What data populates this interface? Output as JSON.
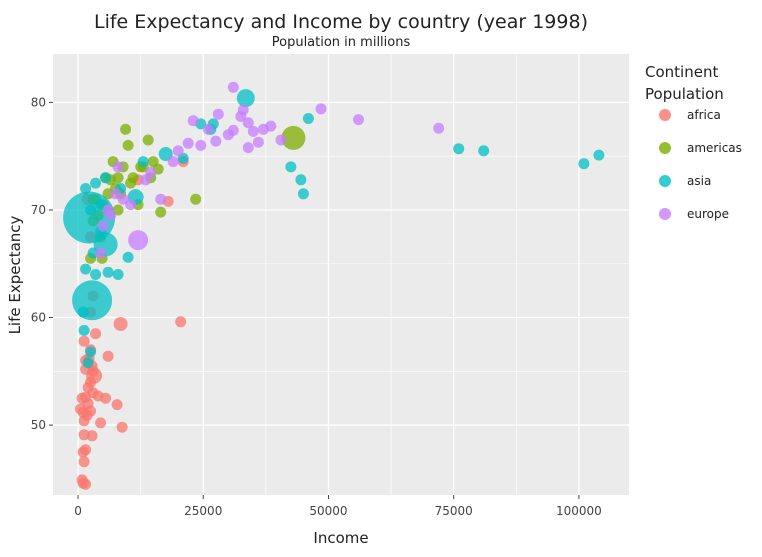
{
  "chart_data": {
    "type": "scatter",
    "title": "Life Expectancy and Income by country (year 1998)",
    "subtitle": "Population in millions",
    "xlabel": "Income",
    "ylabel": "Life Expectancy",
    "xlim": [
      -5000,
      110000
    ],
    "ylim": [
      43.5,
      84.5
    ],
    "x_ticks": [
      0,
      25000,
      50000,
      75000,
      100000
    ],
    "x_tick_labels": [
      "0",
      "25000",
      "50000",
      "75000",
      "100000"
    ],
    "y_ticks": [
      50,
      60,
      70,
      80
    ],
    "y_tick_labels": [
      "50",
      "60",
      "70",
      "80"
    ],
    "grid": true,
    "legend": {
      "title_lines": [
        "Continent",
        "Population"
      ],
      "placement": "right",
      "entries": [
        "africa",
        "americas",
        "asia",
        "europe"
      ]
    },
    "colors": {
      "africa": "#F8766D",
      "americas": "#7CAE00",
      "asia": "#00BFC4",
      "europe": "#C77CFF",
      "panel_background": "#EBEBEB",
      "grid": "#FFFFFF"
    },
    "series": [
      {
        "name": "africa",
        "points": [
          [
            1000,
            44.6
          ],
          [
            1500,
            44.5
          ],
          [
            800,
            44.9
          ],
          [
            1200,
            46.6
          ],
          [
            1000,
            47.5
          ],
          [
            1500,
            47.7
          ],
          [
            2800,
            49.0
          ],
          [
            1200,
            49.1
          ],
          [
            8800,
            49.8
          ],
          [
            4500,
            50.2
          ],
          [
            1200,
            50.4
          ],
          [
            1800,
            50.9
          ],
          [
            500,
            51.5
          ],
          [
            1000,
            51.2
          ],
          [
            2500,
            51.3
          ],
          [
            7800,
            51.9
          ],
          [
            2000,
            52.0
          ],
          [
            800,
            52.5
          ],
          [
            1500,
            52.6
          ],
          [
            4000,
            52.7
          ],
          [
            5500,
            52.5
          ],
          [
            3000,
            53.0
          ],
          [
            2000,
            53.5
          ],
          [
            2500,
            54.0
          ],
          [
            3200,
            54.6
          ],
          [
            3000,
            55.0
          ],
          [
            1500,
            55.2
          ],
          [
            2800,
            55.5
          ],
          [
            1500,
            56.0
          ],
          [
            2200,
            56.2
          ],
          [
            6000,
            56.4
          ],
          [
            2500,
            57.0
          ],
          [
            1200,
            57.8
          ],
          [
            3500,
            58.5
          ],
          [
            8500,
            59.4
          ],
          [
            20500,
            59.6
          ],
          [
            2500,
            60.5
          ],
          [
            3000,
            62.0
          ],
          [
            18000,
            70.8
          ],
          [
            21000,
            74.5
          ],
          [
            6000,
            70.0
          ],
          [
            12000,
            72.8
          ],
          [
            2500,
            67.5
          ],
          [
            1800,
            71.0
          ]
        ]
      },
      {
        "name": "americas",
        "points": [
          [
            2500,
            65.5
          ],
          [
            4500,
            67.5
          ],
          [
            3000,
            69.0
          ],
          [
            5000,
            70.5
          ],
          [
            6000,
            71.5
          ],
          [
            7500,
            72.0
          ],
          [
            8000,
            73.0
          ],
          [
            9000,
            74.0
          ],
          [
            10000,
            76.0
          ],
          [
            11000,
            73.0
          ],
          [
            12000,
            70.5
          ],
          [
            13000,
            74.0
          ],
          [
            14000,
            76.5
          ],
          [
            15000,
            74.5
          ],
          [
            16000,
            73.8
          ],
          [
            7000,
            74.5
          ],
          [
            8500,
            71.5
          ],
          [
            9500,
            77.5
          ],
          [
            10500,
            72.5
          ],
          [
            5500,
            73.0
          ],
          [
            3500,
            71.0
          ],
          [
            4000,
            69.5
          ],
          [
            6500,
            72.8
          ],
          [
            8000,
            70.0
          ],
          [
            12500,
            74.0
          ],
          [
            14500,
            73.0
          ],
          [
            16500,
            69.8
          ],
          [
            23500,
            71.0
          ],
          [
            43000,
            76.7
          ],
          [
            4800,
            65.5
          ],
          [
            3000,
            71.0
          ]
        ]
      },
      {
        "name": "asia",
        "points": [
          [
            2200,
            69.3
          ],
          [
            2800,
            61.6
          ],
          [
            5500,
            66.8
          ],
          [
            3500,
            64.0
          ],
          [
            1500,
            64.5
          ],
          [
            1000,
            60.5
          ],
          [
            1200,
            58.8
          ],
          [
            2500,
            56.8
          ],
          [
            2000,
            55.8
          ],
          [
            4500,
            68.0
          ],
          [
            8000,
            64.0
          ],
          [
            10000,
            65.6
          ],
          [
            11500,
            71.2
          ],
          [
            17500,
            75.2
          ],
          [
            21000,
            74.8
          ],
          [
            24500,
            78.0
          ],
          [
            33500,
            80.4
          ],
          [
            42500,
            74.0
          ],
          [
            44500,
            72.8
          ],
          [
            45000,
            71.5
          ],
          [
            46000,
            78.5
          ],
          [
            76000,
            75.7
          ],
          [
            81000,
            75.5
          ],
          [
            101000,
            74.3
          ],
          [
            104000,
            75.1
          ],
          [
            26500,
            77.5
          ],
          [
            3500,
            72.5
          ],
          [
            5500,
            73.0
          ],
          [
            1500,
            72.0
          ],
          [
            2500,
            70.0
          ],
          [
            4500,
            70.5
          ],
          [
            3000,
            66.0
          ],
          [
            6000,
            64.2
          ],
          [
            8500,
            72.0
          ],
          [
            13000,
            74.5
          ],
          [
            27000,
            78.0
          ]
        ]
      },
      {
        "name": "europe",
        "points": [
          [
            5000,
            68.5
          ],
          [
            6000,
            70.0
          ],
          [
            7500,
            71.5
          ],
          [
            9000,
            71.0
          ],
          [
            10500,
            70.5
          ],
          [
            12000,
            67.2
          ],
          [
            13500,
            72.8
          ],
          [
            14500,
            73.5
          ],
          [
            16500,
            71.0
          ],
          [
            19000,
            74.5
          ],
          [
            20000,
            75.5
          ],
          [
            22000,
            76.2
          ],
          [
            23000,
            78.3
          ],
          [
            24500,
            76.0
          ],
          [
            26000,
            77.5
          ],
          [
            28000,
            78.9
          ],
          [
            30000,
            77.0
          ],
          [
            31000,
            77.4
          ],
          [
            32500,
            78.7
          ],
          [
            33000,
            79.3
          ],
          [
            34000,
            78.1
          ],
          [
            35000,
            77.3
          ],
          [
            36000,
            76.3
          ],
          [
            37000,
            77.5
          ],
          [
            38500,
            77.8
          ],
          [
            40500,
            76.5
          ],
          [
            48500,
            79.4
          ],
          [
            56000,
            78.4
          ],
          [
            72000,
            77.6
          ],
          [
            31000,
            81.4
          ],
          [
            27500,
            76.4
          ],
          [
            34000,
            75.8
          ],
          [
            4500,
            66.0
          ],
          [
            6500,
            69.5
          ],
          [
            8000,
            74.0
          ]
        ]
      }
    ]
  }
}
